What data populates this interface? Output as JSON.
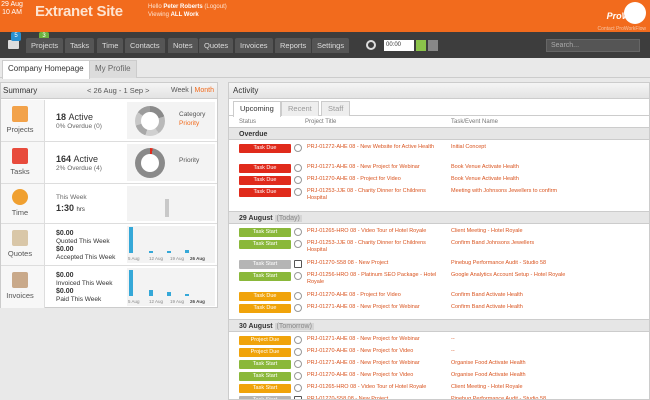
{
  "header": {
    "date_line1": "29 Aug",
    "date_line2": "10 AM",
    "site_title": "Extranet Site",
    "hello_prefix": "Hello",
    "user_name": "Peter Roberts",
    "logout": "(Logout)",
    "viewing_prefix": "Viewing",
    "viewing_value": "ALL Work",
    "logo_text": "ProWork",
    "contact_link": "Contact ProWorkFlow"
  },
  "nav": {
    "messages_badge": "5",
    "projects_badge": "3",
    "items": [
      "Projects",
      "Tasks",
      "Time",
      "Contacts",
      "Notes",
      "Quotes",
      "Invoices",
      "Reports",
      "Settings"
    ],
    "timer_value": "00:00",
    "search_placeholder": "Search..."
  },
  "page_tabs": [
    "Company Homepage",
    "My Profile"
  ],
  "summary": {
    "title": "Summary",
    "range": "< 26 Aug - 1 Sep >",
    "week": "Week",
    "sep": "|",
    "month": "Month",
    "rows": {
      "projects": {
        "label": "Projects",
        "big_num": "18",
        "big_word": "Active",
        "sub": "0% Overdue (0)",
        "chart_label1": "Category",
        "chart_label2": "Priority"
      },
      "tasks": {
        "label": "Tasks",
        "big_num": "164",
        "big_word": "Active",
        "sub": "2% Overdue (4)",
        "chart_label1": "Priority"
      },
      "time": {
        "label": "Time",
        "line1": "This Week",
        "big": "1:30",
        "unit": "hrs"
      },
      "quotes": {
        "label": "Quotes",
        "v1": "$0.00",
        "l1": "Quoted This Week",
        "v2": "$0.00",
        "l2": "Accepted This Week",
        "ticks": [
          "5 Aug",
          "12 Aug",
          "19 Aug",
          "26 Aug"
        ]
      },
      "invoices": {
        "label": "Invoices",
        "v1": "$0.00",
        "l1": "Invoiced This Week",
        "v2": "$0.00",
        "l2": "Paid This Week",
        "ticks": [
          "5 Aug",
          "12 Aug",
          "19 Aug",
          "26 Aug"
        ]
      }
    }
  },
  "activity": {
    "title": "Activity",
    "tabs": [
      "Upcoming",
      "Recent",
      "Staff"
    ],
    "columns": [
      "Status",
      "Project Title",
      "Task/Event Name"
    ],
    "sections": [
      {
        "title": "Overdue",
        "note": "",
        "rows": [
          {
            "status": "Task Due",
            "color": "#e02a1b",
            "project": "PRJ-01272-AHE 08 - New Website for Active Health",
            "task": "Initial Concept"
          },
          {
            "status": "Task Due",
            "color": "#e02a1b",
            "project": "PRJ-01271-AHE 08 - New Project for Webinar",
            "task": "Book Venue Activate Health"
          },
          {
            "status": "Task Due",
            "color": "#e02a1b",
            "project": "PRJ-01270-AHE 08 - Project for Video",
            "task": "Book Venue Activate Health"
          },
          {
            "status": "Task Due",
            "color": "#e02a1b",
            "project": "PRJ-01253-JJE 08 - Charity Dinner for Childrens Hospital",
            "task": "Meeting with Johnsons Jewellers to confirm"
          }
        ]
      },
      {
        "title": "29 August",
        "note": "(Today)",
        "rows": [
          {
            "status": "Task Start",
            "color": "#8ab83a",
            "project": "PRJ-01265-HRO 08 - Video Tour of Hotel Royale",
            "task": "Client Meeting - Hotel Royale"
          },
          {
            "status": "Task Start",
            "color": "#8ab83a",
            "project": "PRJ-01253-JJE 08 - Charity Dinner for Childrens Hospital",
            "task": "Confirm Band Johnsons Jewellers"
          },
          {
            "status": "Task Start",
            "color": "#b5b5b5",
            "project": "PRJ-01270-S58 08 - New Project",
            "task": "Pinebug Performance Audit - Studio 58",
            "done": true
          },
          {
            "status": "Task Start",
            "color": "#8ab83a",
            "project": "PRJ-01256-HRO 08 - Platinum SEO Package - Hotel Royale",
            "task": "Google Analytics Account Setup - Hotel Royale"
          },
          {
            "status": "Task Due",
            "color": "#f0a30a",
            "project": "PRJ-01270-AHE 08 - Project for Video",
            "task": "Confirm Band Activate Health"
          },
          {
            "status": "Task Due",
            "color": "#f0a30a",
            "project": "PRJ-01271-AHE 08 - New Project for Webinar",
            "task": "Confirm Band Activate Health"
          }
        ]
      },
      {
        "title": "30 August",
        "note": "(Tomorrow)",
        "rows": [
          {
            "status": "Project Due",
            "color": "#f0a30a",
            "project": "PRJ-01271-AHE 08 - New Project for Webinar",
            "task": "--"
          },
          {
            "status": "Project Due",
            "color": "#f0a30a",
            "project": "PRJ-01270-AHE 08 - New Project for Video",
            "task": "--"
          },
          {
            "status": "Task Start",
            "color": "#8ab83a",
            "project": "PRJ-01271-AHE 08 - New Project for Webinar",
            "task": "Organise Food Activate Health"
          },
          {
            "status": "Task Start",
            "color": "#8ab83a",
            "project": "PRJ-01270-AHE 08 - New Project for Video",
            "task": "Organise Food Activate Health"
          },
          {
            "status": "Task Start",
            "color": "#f0a30a",
            "project": "PRJ-01265-HRO 08 - Video Tour of Hotel Royale",
            "task": "Client Meeting - Hotel Royale"
          },
          {
            "status": "Task Start",
            "color": "#b5b5b5",
            "project": "PRJ-01270-S58 08 - New Project",
            "task": "Pinebug Performance Audit - Studio 58",
            "done": true
          }
        ]
      }
    ]
  },
  "colors": {
    "brand_orange": "#f26b1d",
    "nav_dark": "#3d3d3d",
    "link_orange": "#d9531e",
    "overdue_red": "#e02a1b",
    "start_green": "#8ab83a",
    "due_amber": "#f0a30a",
    "bar_blue": "#35a8d8"
  }
}
